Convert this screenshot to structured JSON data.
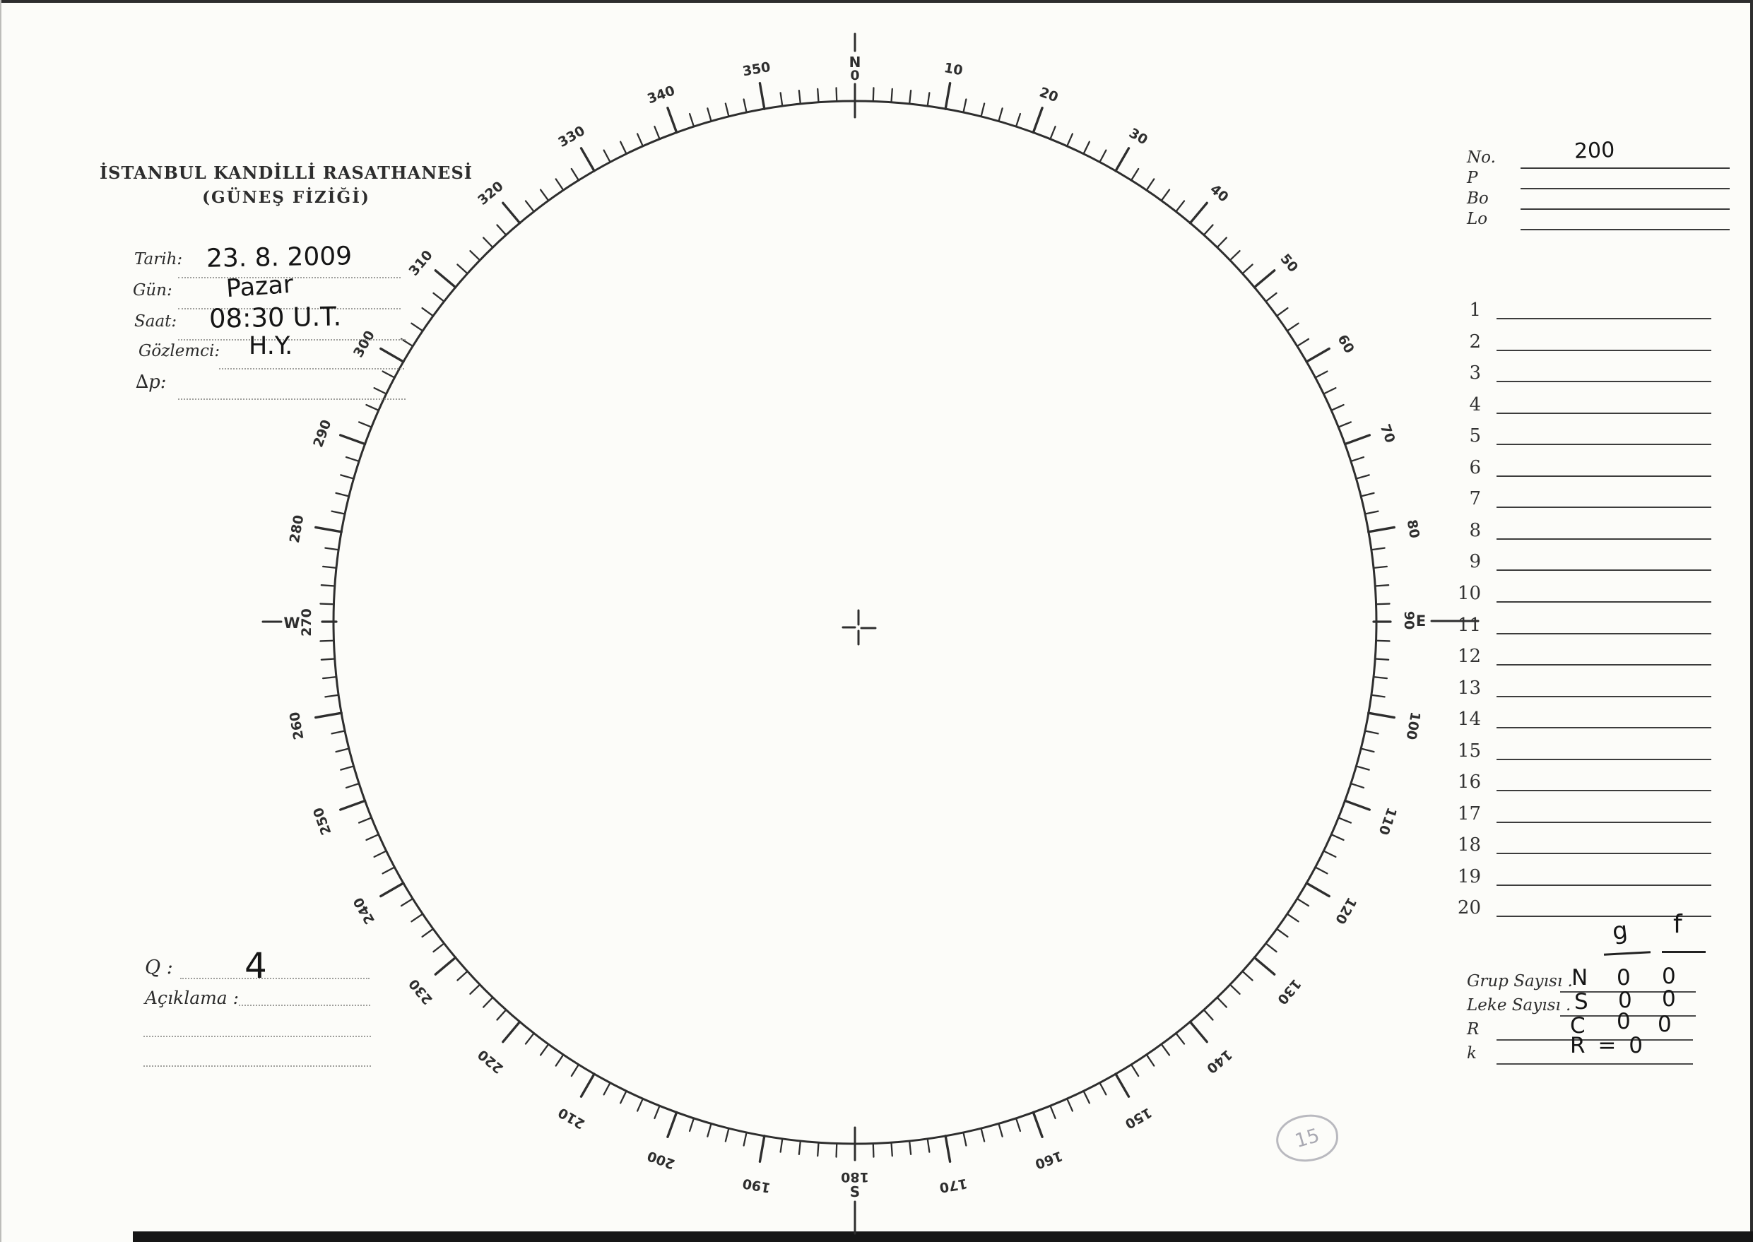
{
  "header": {
    "title": "İSTANBUL KANDİLLİ RASATHANESİ",
    "subtitle": "(GÜNEŞ FİZİĞİ)"
  },
  "left_fields": {
    "tarih": {
      "label": "Tarih:",
      "value": "23. 8. 2009"
    },
    "gun": {
      "label": "Gün:",
      "value": "Pazar"
    },
    "saat": {
      "label": "Saat:",
      "value": "08:30 U.T."
    },
    "gozlemci": {
      "label": "Gözlemci:",
      "value": "H.Y."
    },
    "delta_p": {
      "label": "∆p:",
      "value": ""
    }
  },
  "right_fields": {
    "no": {
      "label": "No.",
      "value": "200"
    },
    "p": {
      "label": "P",
      "value": ""
    },
    "bo": {
      "label": "Bo",
      "value": ""
    },
    "lo": {
      "label": "Lo",
      "value": ""
    }
  },
  "observation_rows": [
    "1",
    "2",
    "3",
    "4",
    "5",
    "6",
    "7",
    "8",
    "9",
    "10",
    "11",
    "12",
    "13",
    "14",
    "15",
    "16",
    "17",
    "18",
    "19",
    "20"
  ],
  "stats": {
    "col_headers": [
      "g",
      "f"
    ],
    "rows": [
      {
        "label": "Grup Sayısı .",
        "cells": [
          "N",
          "0",
          "0"
        ]
      },
      {
        "label": "Leke Sayısı .",
        "cells": [
          "S",
          "0",
          "0"
        ]
      },
      {
        "label": "R",
        "cells": [
          "C",
          "0",
          "0"
        ]
      },
      {
        "label": "k",
        "cells": [
          "R = 0"
        ]
      }
    ]
  },
  "bottom_left": {
    "q_label": "Q :",
    "q_value": "4",
    "aciklama_label": "Açıklama :"
  },
  "pencil_note": "15",
  "dial": {
    "degree_labels": [
      "10",
      "20",
      "30",
      "40",
      "50",
      "60",
      "70",
      "80",
      "100",
      "110",
      "120",
      "130",
      "140",
      "150",
      "160",
      "170",
      "190",
      "200",
      "210",
      "220",
      "230",
      "240",
      "250",
      "260",
      "280",
      "290",
      "300",
      "310",
      "320",
      "330",
      "340",
      "350"
    ],
    "cardinals": [
      {
        "letter": "N",
        "degree": "0"
      },
      {
        "letter": "E",
        "degree": "90"
      },
      {
        "letter": "S",
        "degree": "180"
      },
      {
        "letter": "W",
        "degree": "270"
      }
    ]
  }
}
